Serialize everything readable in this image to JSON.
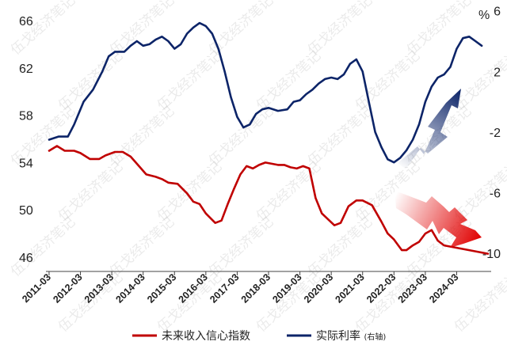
{
  "chart_data": {
    "type": "line",
    "title": "",
    "xlabel": "",
    "y_left": {
      "ticks": [
        66,
        62,
        58,
        54,
        50,
        46
      ],
      "range": [
        44.8,
        67.2
      ]
    },
    "y_right": {
      "unit": "%",
      "ticks": [
        6,
        2,
        -2,
        -6,
        -10
      ],
      "range": [
        -11.2,
        6.3
      ]
    },
    "x_range": [
      2011.1,
      2025.3
    ],
    "categories": [
      "2011-03",
      "2012-03",
      "2013-03",
      "2014-03",
      "2015-03",
      "2016-03",
      "2017-03",
      "2018-03",
      "2019-03",
      "2020-03",
      "2021-03",
      "2022-03",
      "2023-03",
      "2024-03"
    ],
    "series": [
      {
        "name": "未来收入信心指数",
        "axis": "left",
        "color": "#c00000",
        "x": [
          2011.2,
          2011.45,
          2011.7,
          2012.0,
          2012.2,
          2012.5,
          2012.8,
          2013.0,
          2013.3,
          2013.55,
          2013.8,
          2014.0,
          2014.3,
          2014.6,
          2014.8,
          2015.0,
          2015.3,
          2015.6,
          2015.8,
          2016.0,
          2016.2,
          2016.5,
          2016.7,
          2016.9,
          2017.1,
          2017.3,
          2017.5,
          2017.7,
          2017.9,
          2018.1,
          2018.3,
          2018.5,
          2018.7,
          2018.9,
          2019.1,
          2019.3,
          2019.5,
          2019.7,
          2019.9,
          2020.1,
          2020.3,
          2020.5,
          2020.75,
          2021.0,
          2021.2,
          2021.5,
          2021.8,
          2022.0,
          2022.2,
          2022.45,
          2022.6,
          2022.8,
          2023.0,
          2023.2,
          2023.4,
          2023.6,
          2023.8,
          2024.0,
          2024.2,
          2024.4,
          2024.6,
          2024.8,
          2025.0,
          2025.2
        ],
        "values": [
          55.0,
          55.4,
          55.0,
          55.0,
          54.8,
          54.3,
          54.3,
          54.6,
          54.9,
          54.9,
          54.5,
          53.9,
          53.0,
          52.8,
          52.6,
          52.3,
          52.2,
          51.4,
          50.7,
          50.5,
          49.7,
          48.9,
          49.1,
          50.5,
          51.8,
          53.0,
          53.7,
          53.5,
          53.8,
          54.0,
          53.9,
          53.8,
          53.8,
          53.6,
          53.5,
          53.7,
          53.5,
          51.0,
          49.7,
          49.2,
          48.7,
          48.9,
          50.3,
          50.8,
          50.8,
          50.4,
          49.0,
          48.0,
          47.5,
          46.6,
          46.6,
          47.0,
          47.3,
          48.0,
          48.3,
          47.4,
          47.0,
          46.9,
          46.8,
          46.7,
          46.6,
          46.5,
          46.4,
          46.3
        ]
      },
      {
        "name": "实际利率",
        "axis_label": "(右轴)",
        "axis": "right",
        "color": "#0c2468",
        "x": [
          2011.2,
          2011.5,
          2011.8,
          2012.0,
          2012.3,
          2012.6,
          2012.9,
          2013.1,
          2013.3,
          2013.6,
          2013.8,
          2014.0,
          2014.2,
          2014.4,
          2014.6,
          2014.8,
          2015.0,
          2015.2,
          2015.4,
          2015.6,
          2015.8,
          2016.0,
          2016.2,
          2016.4,
          2016.6,
          2016.8,
          2017.0,
          2017.2,
          2017.4,
          2017.6,
          2017.8,
          2018.0,
          2018.2,
          2018.5,
          2018.8,
          2019.0,
          2019.2,
          2019.4,
          2019.6,
          2019.8,
          2020.0,
          2020.2,
          2020.4,
          2020.6,
          2020.8,
          2021.0,
          2021.2,
          2021.4,
          2021.6,
          2021.8,
          2022.0,
          2022.2,
          2022.4,
          2022.6,
          2022.8,
          2023.0,
          2023.2,
          2023.4,
          2023.6,
          2023.8,
          2024.0,
          2024.2,
          2024.4,
          2024.6,
          2024.8,
          2025.0
        ],
        "values": [
          -2.5,
          -2.3,
          -2.3,
          -1.5,
          0.0,
          0.8,
          2.0,
          3.0,
          3.3,
          3.3,
          3.7,
          4.0,
          3.7,
          3.8,
          4.1,
          4.3,
          4.0,
          3.5,
          3.8,
          4.5,
          4.9,
          5.2,
          5.0,
          4.5,
          3.5,
          2.0,
          0.3,
          -1.0,
          -1.7,
          -1.5,
          -0.8,
          -0.5,
          -0.4,
          -0.6,
          -0.5,
          0.0,
          0.1,
          0.5,
          0.8,
          1.2,
          1.5,
          1.6,
          1.5,
          1.8,
          2.5,
          2.8,
          2.0,
          0.0,
          -2.0,
          -3.0,
          -3.8,
          -4.0,
          -3.7,
          -3.2,
          -2.5,
          -1.5,
          0.0,
          1.0,
          1.6,
          1.8,
          2.3,
          3.5,
          4.2,
          4.3,
          4.0,
          3.7
        ]
      }
    ],
    "legend": {
      "position": "bottom"
    }
  },
  "watermark": "伍戈经济笔记"
}
